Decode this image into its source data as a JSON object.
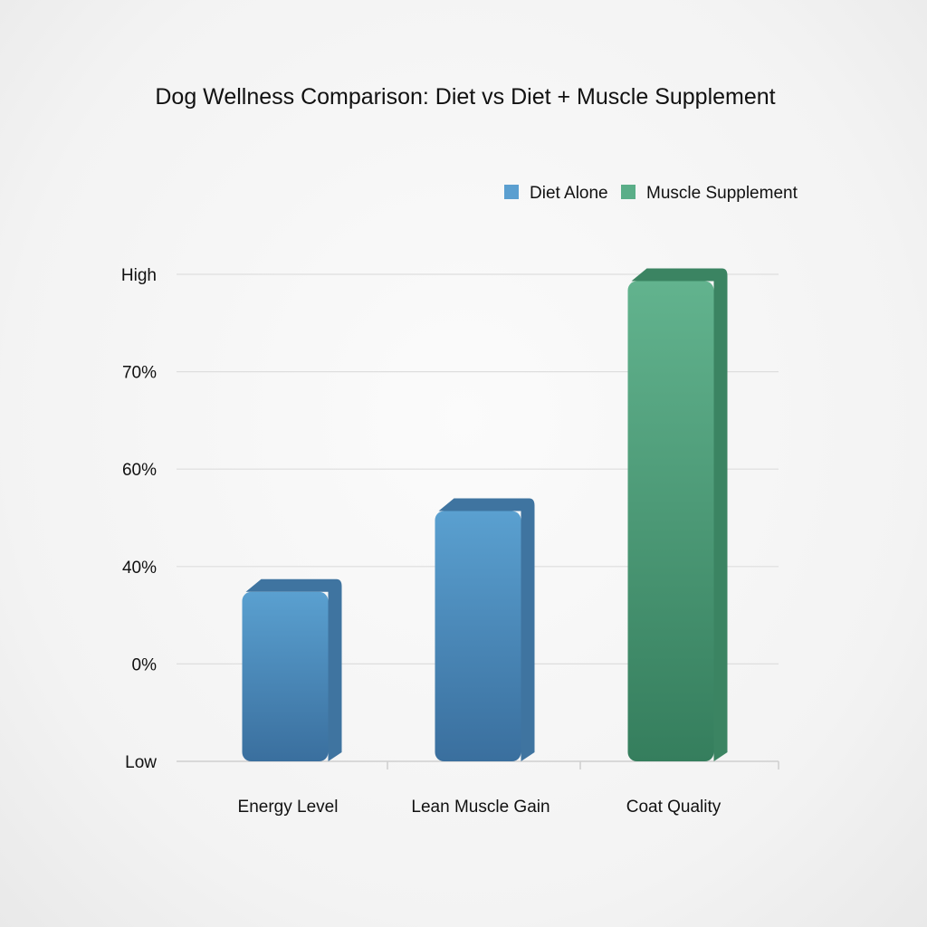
{
  "chart_data": {
    "type": "bar",
    "title": "Dog Wellness Comparison: Diet vs Diet + Muscle Supplement",
    "xlabel": "",
    "ylabel": "",
    "categories": [
      "Energy Level",
      "Lean Muscle Gain",
      "Coat Quality"
    ],
    "y_ticks": [
      "Low",
      "0%",
      "40%",
      "60%",
      "70%",
      "High"
    ],
    "y_scale_note": "values are positions on the y axis in tick-index units (Low=0 ... High=5)",
    "ylim": [
      0,
      5
    ],
    "values": [
      1.74,
      2.57,
      4.93
    ],
    "bar_series": [
      "Diet Alone",
      "Diet Alone",
      "Muscle Supplement"
    ],
    "legend": [
      {
        "name": "Diet Alone",
        "color": "#5b9fd0"
      },
      {
        "name": "Muscle Supplement",
        "color": "#5aae88"
      }
    ],
    "legend_position": "top-right",
    "grid": true
  }
}
